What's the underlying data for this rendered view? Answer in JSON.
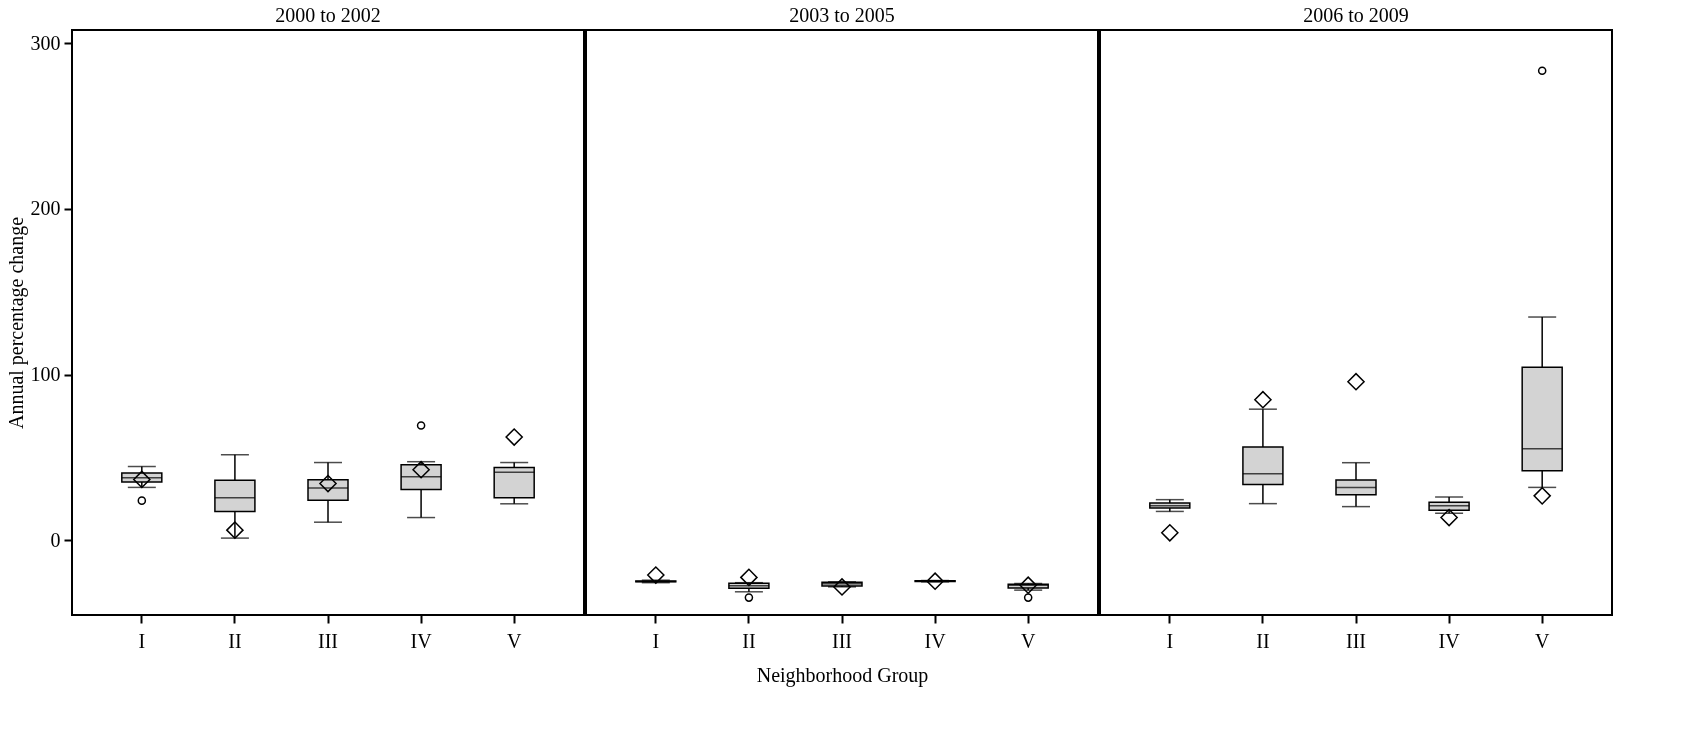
{
  "chart_data": [
    {
      "type": "box",
      "title": "2000 to 2002",
      "ylabel": "Annual percentage change",
      "categories": [
        "I",
        "II",
        "III",
        "IV",
        "V"
      ],
      "ylim": [
        -45,
        308
      ],
      "yticks": [
        0,
        100,
        200,
        300
      ],
      "grid": false,
      "marker": "diamond",
      "boxes": [
        {
          "low": 32,
          "q1": 35.3,
          "median": 37.8,
          "q3": 40.7,
          "high": 44.6,
          "mean": 36.8,
          "outliers": [
            24
          ]
        },
        {
          "low": 1.4,
          "q1": 17.4,
          "median": 25.8,
          "q3": 36.3,
          "high": 51.7,
          "mean": 6.2
        },
        {
          "low": 11,
          "q1": 24.2,
          "median": 31.6,
          "q3": 36.6,
          "high": 47,
          "mean": 34.3
        },
        {
          "low": 13.8,
          "q1": 30.8,
          "median": 38.4,
          "q3": 45.7,
          "high": 47.5,
          "mean": 42.7,
          "outliers": [
            69.4
          ]
        },
        {
          "low": 22.1,
          "q1": 25.8,
          "median": 41.1,
          "q3": 44,
          "high": 47,
          "mean": 62.4
        }
      ]
    },
    {
      "type": "box",
      "title": "2003 to 2005",
      "xlabel": "Neighborhood Group",
      "categories": [
        "I",
        "II",
        "III",
        "IV",
        "V"
      ],
      "ylim": [
        -45,
        308
      ],
      "yticks": [
        0,
        100,
        200,
        300
      ],
      "tick_labels": "x",
      "grid": false,
      "marker": "diamond",
      "boxes": [
        {
          "low": -25.5,
          "q1": -25,
          "median": -24.8,
          "q3": -24.5,
          "high": -24,
          "mean": -20.9
        },
        {
          "low": -31,
          "q1": -28.8,
          "median": -27.3,
          "q3": -25.8,
          "high": -25.5,
          "mean": -22.3,
          "outliers": [
            -34.5
          ]
        },
        {
          "low": -28,
          "q1": -27.5,
          "median": -26.2,
          "q3": -25.2,
          "high": -25,
          "mean": -28.1
        },
        {
          "low": -25,
          "q1": -24.8,
          "median": -24.6,
          "q3": -24.4,
          "high": -24.2,
          "mean": -24.6
        },
        {
          "low": -30,
          "q1": -28.7,
          "median": -27.1,
          "q3": -26.4,
          "high": -26,
          "mean": -27,
          "outliers": [
            -34.5
          ]
        }
      ]
    },
    {
      "type": "box",
      "title": "2006 to 2009",
      "categories": [
        "I",
        "II",
        "III",
        "IV",
        "V"
      ],
      "ylim": [
        -45,
        308
      ],
      "yticks": [
        0,
        100,
        200,
        300
      ],
      "tick_labels": "x",
      "grid": false,
      "marker": "diamond",
      "boxes": [
        {
          "low": 17.5,
          "q1": 19.5,
          "median": 20.9,
          "q3": 22.6,
          "high": 24.6,
          "mean": 4.6
        },
        {
          "low": 22.2,
          "q1": 33.8,
          "median": 40.2,
          "q3": 56.4,
          "high": 79.2,
          "mean": 84.9
        },
        {
          "low": 20.4,
          "q1": 27.6,
          "median": 32,
          "q3": 36.4,
          "high": 46.9,
          "mean": 95.8
        },
        {
          "low": 16.4,
          "q1": 18.2,
          "median": 20.9,
          "q3": 23,
          "high": 26.2,
          "mean": 13.8
        },
        {
          "low": 32,
          "q1": 42,
          "median": 55.3,
          "q3": 104.5,
          "high": 134.8,
          "mean": 26.9,
          "outliers": [
            283.4
          ]
        }
      ]
    }
  ]
}
